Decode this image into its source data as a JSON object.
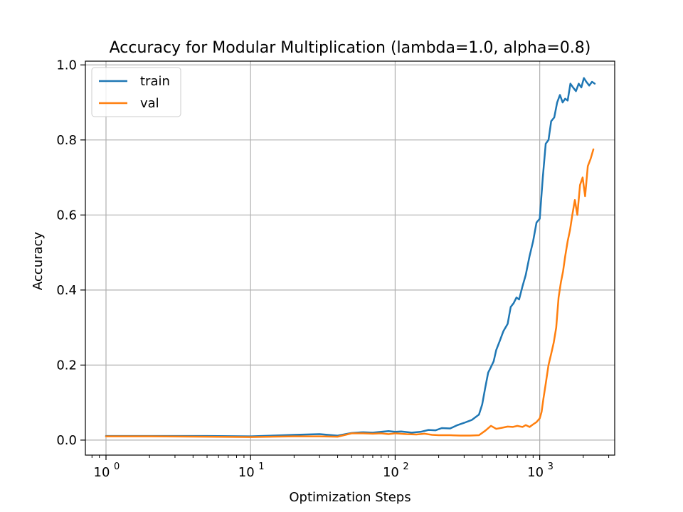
{
  "chart_data": {
    "type": "line",
    "title": "Accuracy for Modular Multiplication (lambda=1.0, alpha=0.8)",
    "xlabel": "Optimization Steps",
    "ylabel": "Accuracy",
    "xscale": "log",
    "xlim": [
      0.72,
      3300
    ],
    "ylim": [
      -0.04,
      1.01
    ],
    "grid": true,
    "legend_position": "top-left",
    "x_ticks": [
      {
        "value": 1,
        "base": "10",
        "exp": "0"
      },
      {
        "value": 10,
        "base": "10",
        "exp": "1"
      },
      {
        "value": 100,
        "base": "10",
        "exp": "2"
      },
      {
        "value": 1000,
        "base": "10",
        "exp": "3"
      }
    ],
    "y_ticks": [
      {
        "value": 0.0,
        "label": "0.0"
      },
      {
        "value": 0.2,
        "label": "0.2"
      },
      {
        "value": 0.4,
        "label": "0.4"
      },
      {
        "value": 0.6,
        "label": "0.6"
      },
      {
        "value": 0.8,
        "label": "0.8"
      },
      {
        "value": 1.0,
        "label": "1.0"
      }
    ],
    "series": [
      {
        "name": "train",
        "color": "#1f77b4",
        "points": [
          [
            1,
            0.011
          ],
          [
            2,
            0.011
          ],
          [
            5,
            0.011
          ],
          [
            10,
            0.01
          ],
          [
            20,
            0.014
          ],
          [
            30,
            0.016
          ],
          [
            40,
            0.012
          ],
          [
            50,
            0.019
          ],
          [
            60,
            0.021
          ],
          [
            70,
            0.02
          ],
          [
            80,
            0.022
          ],
          [
            90,
            0.024
          ],
          [
            100,
            0.022
          ],
          [
            110,
            0.023
          ],
          [
            130,
            0.02
          ],
          [
            150,
            0.022
          ],
          [
            170,
            0.027
          ],
          [
            190,
            0.026
          ],
          [
            210,
            0.032
          ],
          [
            240,
            0.031
          ],
          [
            270,
            0.04
          ],
          [
            300,
            0.046
          ],
          [
            340,
            0.054
          ],
          [
            380,
            0.068
          ],
          [
            400,
            0.095
          ],
          [
            420,
            0.14
          ],
          [
            440,
            0.18
          ],
          [
            460,
            0.195
          ],
          [
            480,
            0.21
          ],
          [
            500,
            0.24
          ],
          [
            530,
            0.265
          ],
          [
            560,
            0.29
          ],
          [
            600,
            0.31
          ],
          [
            630,
            0.355
          ],
          [
            660,
            0.365
          ],
          [
            690,
            0.38
          ],
          [
            720,
            0.375
          ],
          [
            760,
            0.41
          ],
          [
            800,
            0.44
          ],
          [
            850,
            0.49
          ],
          [
            900,
            0.53
          ],
          [
            950,
            0.58
          ],
          [
            1000,
            0.59
          ],
          [
            1050,
            0.7
          ],
          [
            1100,
            0.79
          ],
          [
            1150,
            0.8
          ],
          [
            1200,
            0.85
          ],
          [
            1260,
            0.86
          ],
          [
            1320,
            0.9
          ],
          [
            1380,
            0.92
          ],
          [
            1440,
            0.9
          ],
          [
            1500,
            0.91
          ],
          [
            1560,
            0.905
          ],
          [
            1630,
            0.95
          ],
          [
            1700,
            0.94
          ],
          [
            1780,
            0.93
          ],
          [
            1860,
            0.95
          ],
          [
            1940,
            0.94
          ],
          [
            2020,
            0.965
          ],
          [
            2100,
            0.955
          ],
          [
            2200,
            0.945
          ],
          [
            2300,
            0.955
          ],
          [
            2400,
            0.95
          ]
        ]
      },
      {
        "name": "val",
        "color": "#ff7f0e",
        "points": [
          [
            1,
            0.01
          ],
          [
            2,
            0.01
          ],
          [
            5,
            0.009
          ],
          [
            10,
            0.008
          ],
          [
            20,
            0.01
          ],
          [
            30,
            0.01
          ],
          [
            40,
            0.009
          ],
          [
            50,
            0.018
          ],
          [
            60,
            0.018
          ],
          [
            70,
            0.017
          ],
          [
            80,
            0.018
          ],
          [
            90,
            0.016
          ],
          [
            100,
            0.018
          ],
          [
            120,
            0.016
          ],
          [
            140,
            0.015
          ],
          [
            160,
            0.017
          ],
          [
            180,
            0.014
          ],
          [
            200,
            0.013
          ],
          [
            240,
            0.013
          ],
          [
            280,
            0.012
          ],
          [
            330,
            0.012
          ],
          [
            380,
            0.013
          ],
          [
            420,
            0.025
          ],
          [
            460,
            0.038
          ],
          [
            500,
            0.03
          ],
          [
            550,
            0.033
          ],
          [
            600,
            0.036
          ],
          [
            650,
            0.035
          ],
          [
            700,
            0.038
          ],
          [
            760,
            0.035
          ],
          [
            800,
            0.04
          ],
          [
            850,
            0.035
          ],
          [
            900,
            0.042
          ],
          [
            950,
            0.048
          ],
          [
            1000,
            0.058
          ],
          [
            1030,
            0.075
          ],
          [
            1060,
            0.11
          ],
          [
            1100,
            0.15
          ],
          [
            1150,
            0.2
          ],
          [
            1200,
            0.23
          ],
          [
            1250,
            0.26
          ],
          [
            1300,
            0.3
          ],
          [
            1350,
            0.38
          ],
          [
            1400,
            0.42
          ],
          [
            1450,
            0.45
          ],
          [
            1500,
            0.49
          ],
          [
            1560,
            0.53
          ],
          [
            1620,
            0.56
          ],
          [
            1680,
            0.6
          ],
          [
            1750,
            0.64
          ],
          [
            1820,
            0.6
          ],
          [
            1900,
            0.68
          ],
          [
            1980,
            0.7
          ],
          [
            2060,
            0.65
          ],
          [
            2150,
            0.73
          ],
          [
            2250,
            0.75
          ],
          [
            2350,
            0.775
          ]
        ]
      }
    ]
  }
}
